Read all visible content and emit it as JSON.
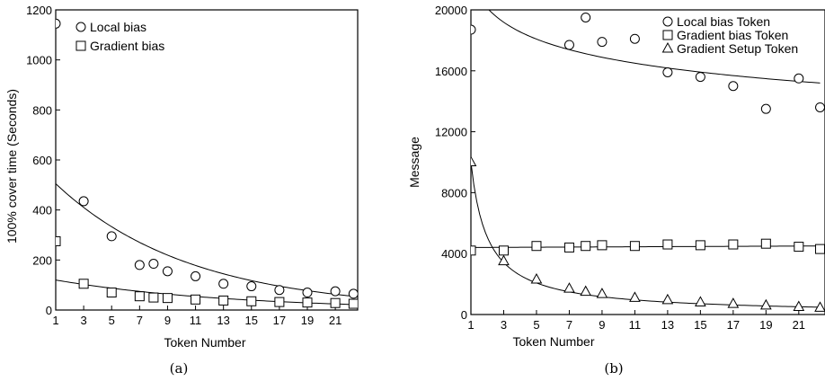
{
  "chart_data": [
    {
      "type": "scatter",
      "caption": "(a)",
      "xlabel": "Token Number",
      "ylabel": "100%  cover time (Seconds)",
      "xlim": [
        1,
        22.6
      ],
      "ylim": [
        0,
        1200
      ],
      "xticks": [
        1,
        3,
        5,
        7,
        9,
        11,
        13,
        15,
        17,
        19,
        21
      ],
      "yticks": [
        0,
        200,
        400,
        600,
        800,
        1000,
        1200
      ],
      "legend_position": "top-left",
      "series": [
        {
          "name": "Local bias",
          "marker": "circle",
          "x": [
            1,
            3,
            5,
            7,
            8,
            9,
            11,
            13,
            15,
            17,
            19,
            21,
            22.3
          ],
          "y": [
            1145,
            435,
            295,
            180,
            185,
            155,
            135,
            105,
            95,
            80,
            70,
            75,
            65
          ],
          "fit": {
            "type": "exponential",
            "x": [
              1,
              22.3
            ],
            "y_start": 505,
            "y_end": 55
          }
        },
        {
          "name": "Gradient bias",
          "marker": "square",
          "x": [
            1,
            3,
            5,
            7,
            8,
            9,
            11,
            13,
            15,
            17,
            19,
            21,
            22.3
          ],
          "y": [
            275,
            105,
            70,
            55,
            50,
            48,
            42,
            38,
            35,
            32,
            30,
            28,
            25
          ],
          "fit": {
            "type": "exponential",
            "x": [
              1,
              22.3
            ],
            "y_start": 120,
            "y_end": 22
          }
        }
      ]
    },
    {
      "type": "scatter",
      "caption": "(b)",
      "xlabel": "Token Number",
      "ylabel": "Message",
      "xlim": [
        1,
        22.6
      ],
      "ylim": [
        0,
        20000
      ],
      "xticks": [
        1,
        3,
        5,
        7,
        9,
        11,
        13,
        15,
        17,
        19,
        21
      ],
      "yticks": [
        0,
        4000,
        8000,
        12000,
        16000,
        20000
      ],
      "legend_position": "top-right",
      "series": [
        {
          "name": "Local bias Token",
          "marker": "circle",
          "x": [
            1,
            7,
            8,
            9,
            11,
            13,
            15,
            17,
            19,
            21,
            22.3
          ],
          "y": [
            18700,
            17700,
            19500,
            17900,
            18100,
            15900,
            15600,
            15000,
            13500,
            15500,
            13600
          ],
          "fit": {
            "type": "power",
            "x": [
              2.1,
              22.3
            ],
            "y_start": 20000,
            "y_end": 15200
          }
        },
        {
          "name": "Gradient bias Token",
          "marker": "square",
          "x": [
            1,
            3,
            5,
            7,
            8,
            9,
            11,
            13,
            15,
            17,
            19,
            21,
            22.3
          ],
          "y": [
            4200,
            4200,
            4500,
            4400,
            4500,
            4550,
            4500,
            4600,
            4550,
            4600,
            4650,
            4450,
            4300
          ],
          "fit": {
            "type": "linear",
            "x": [
              1,
              22.3
            ],
            "y_start": 4400,
            "y_end": 4500
          }
        },
        {
          "name": "Gradient Setup Token",
          "marker": "triangle",
          "x": [
            1,
            3,
            5,
            7,
            8,
            9,
            11,
            13,
            15,
            17,
            19,
            21,
            22.3
          ],
          "y": [
            10000,
            3500,
            2300,
            1700,
            1500,
            1350,
            1100,
            950,
            800,
            700,
            600,
            500,
            450
          ],
          "fit": {
            "type": "power",
            "x": [
              1,
              22.3
            ],
            "y_start": 10000,
            "y_end": 480
          }
        }
      ]
    }
  ]
}
